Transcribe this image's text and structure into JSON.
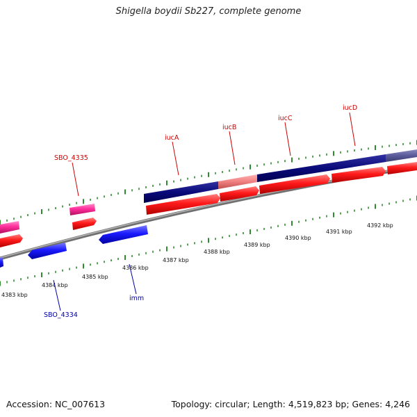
{
  "title": "Shigella boydii Sb227, complete genome",
  "footer": {
    "accession": "Accession: NC_007613",
    "topology": "Topology: circular; Length: 4,519,823 bp; Genes: 4,246"
  },
  "colors": {
    "backbone": "#8a8a8a",
    "tick": "#2e8b2e",
    "gene_red": "#ff1a1a",
    "gene_pink": "#ff2d9a",
    "gene_blue": "#1a1aff",
    "orf_navy": "#0a0a7a",
    "orf_salmon": "#f08080",
    "orf_slate": "#5a5a9a",
    "label_red": "#cc0000",
    "label_blue": "#0000aa"
  },
  "kbp_labels": [
    "4383 kbp",
    "4384 kbp",
    "4385 kbp",
    "4386 kbp",
    "4387 kbp",
    "4388 kbp",
    "4389 kbp",
    "4390 kbp",
    "4391 kbp",
    "4392 kbp"
  ],
  "gene_labels_top": [
    "SBO_4335",
    "iucA",
    "iucB",
    "iucC",
    "iucD"
  ],
  "gene_labels_bottom": [
    "SBO_4334",
    "imm"
  ]
}
